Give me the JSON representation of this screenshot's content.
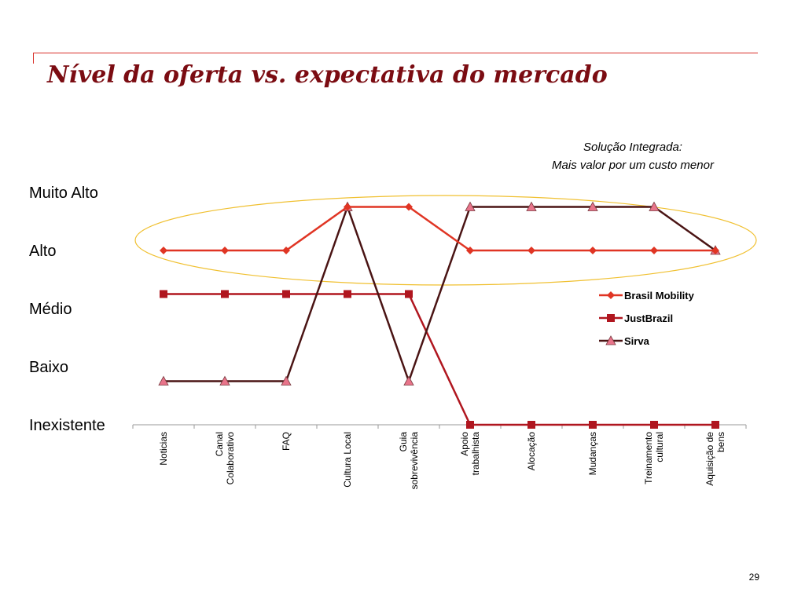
{
  "slide": {
    "title": "Nível da oferta vs. expectativa do mercado",
    "callout_line1": "Solução Integrada:",
    "callout_line2": "Mais valor por um custo menor",
    "page_number": "29"
  },
  "colors": {
    "accent": "#d9302a",
    "title": "#7b0c12",
    "ellipse": "#f0c030"
  },
  "chart_data": {
    "type": "line",
    "y_levels": [
      "Inexistente",
      "Baixo",
      "Médio",
      "Alto",
      "Muito Alto"
    ],
    "ylim": [
      0,
      4
    ],
    "categories": [
      [
        "Noticias"
      ],
      [
        "Canal",
        "Colaborativo"
      ],
      [
        "FAQ"
      ],
      [
        "Cultura Local"
      ],
      [
        "Guia",
        "sobrevivência"
      ],
      [
        "Apoio",
        "trabalhista"
      ],
      [
        "Alocação"
      ],
      [
        "Mudanças"
      ],
      [
        "Treinamento",
        "cultural"
      ],
      [
        "Aquisição de",
        "bens"
      ]
    ],
    "series": [
      {
        "name": "Brasil Mobility",
        "color": "#e03524",
        "marker": "diamond",
        "values": [
          3,
          3,
          3,
          3.75,
          3.75,
          3,
          3,
          3,
          3,
          3
        ]
      },
      {
        "name": "JustBrazil",
        "color": "#b0161f",
        "marker": "square",
        "values": [
          2.25,
          2.25,
          2.25,
          2.25,
          2.25,
          0,
          0,
          0,
          0,
          0
        ]
      },
      {
        "name": "Sirva",
        "color": "#4a1414",
        "marker": "triangle",
        "marker_color": "#e8748a",
        "values": [
          0.75,
          0.75,
          0.75,
          3.75,
          0.75,
          3.75,
          3.75,
          3.75,
          3.75,
          3
        ]
      }
    ],
    "legend_position": "right",
    "grid": false
  }
}
